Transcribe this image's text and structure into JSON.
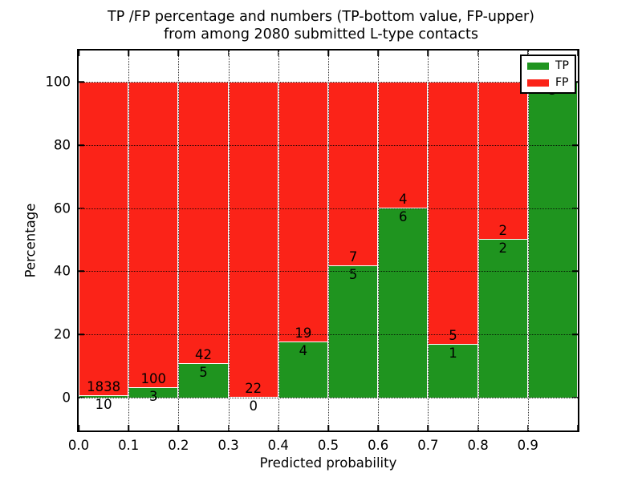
{
  "title": {
    "line1": "TP /FP percentage and numbers (TP-bottom value, FP-upper)",
    "line2": "from among 2080 submitted L-type contacts"
  },
  "colors": {
    "tp_green": "#1f941f",
    "fp_red": "#fb2318",
    "grid": "#000000",
    "frame": "#000000",
    "background": "#ffffff"
  },
  "legend": {
    "entries": [
      {
        "label": "TP",
        "color": "#1f941f"
      },
      {
        "label": "FP",
        "color": "#fb2318"
      }
    ],
    "position": "upper right"
  },
  "chart_data": {
    "type": "bar",
    "stacked": true,
    "title": "TP /FP percentage and numbers (TP-bottom value, FP-upper)\nfrom among 2080 submitted L-type contacts",
    "title_lines": [
      "TP /FP percentage and numbers (TP-bottom value, FP-upper)",
      "from among 2080 submitted L-type contacts"
    ],
    "xlabel": "Predicted probability",
    "ylabel": "Percentage",
    "total_contacts": 2080,
    "xlim": [
      0.0,
      1.0
    ],
    "ylim": [
      -10.5,
      110
    ],
    "grid": true,
    "x_tick_labels": [
      "0.0",
      "0.1",
      "0.2",
      "0.3",
      "0.4",
      "0.5",
      "0.6",
      "0.7",
      "0.8",
      "0.9"
    ],
    "y_tick_values": [
      0,
      20,
      40,
      60,
      80,
      100
    ],
    "legend_entries": [
      "TP",
      "FP"
    ],
    "bars": [
      {
        "bin_start": 0.0,
        "bin_end": 0.1,
        "tp": 10,
        "fp": 1838,
        "tp_pct": 0.54,
        "fp_pct": 99.46
      },
      {
        "bin_start": 0.1,
        "bin_end": 0.2,
        "tp": 3,
        "fp": 100,
        "tp_pct": 2.91,
        "fp_pct": 97.09
      },
      {
        "bin_start": 0.2,
        "bin_end": 0.3,
        "tp": 5,
        "fp": 42,
        "tp_pct": 10.64,
        "fp_pct": 89.36
      },
      {
        "bin_start": 0.3,
        "bin_end": 0.4,
        "tp": 0,
        "fp": 22,
        "tp_pct": 0.0,
        "fp_pct": 100.0
      },
      {
        "bin_start": 0.4,
        "bin_end": 0.5,
        "tp": 4,
        "fp": 19,
        "tp_pct": 17.39,
        "fp_pct": 82.61
      },
      {
        "bin_start": 0.5,
        "bin_end": 0.6,
        "tp": 5,
        "fp": 7,
        "tp_pct": 41.67,
        "fp_pct": 58.33
      },
      {
        "bin_start": 0.6,
        "bin_end": 0.7,
        "tp": 6,
        "fp": 4,
        "tp_pct": 60.0,
        "fp_pct": 40.0
      },
      {
        "bin_start": 0.7,
        "bin_end": 0.8,
        "tp": 1,
        "fp": 5,
        "tp_pct": 16.67,
        "fp_pct": 83.33
      },
      {
        "bin_start": 0.8,
        "bin_end": 0.9,
        "tp": 2,
        "fp": 2,
        "tp_pct": 50.0,
        "fp_pct": 50.0
      },
      {
        "bin_start": 0.9,
        "bin_end": 1.0,
        "tp": 5,
        "fp": 0,
        "tp_pct": 100.0,
        "fp_pct": 0.0,
        "fp_label_hidden": true
      }
    ]
  }
}
